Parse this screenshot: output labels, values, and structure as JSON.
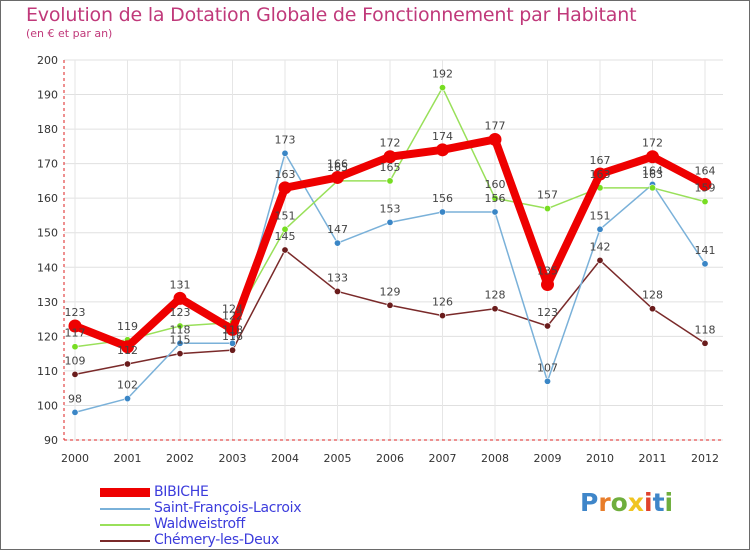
{
  "title": "Evolution de la Dotation Globale de Fonctionnement par Habitant",
  "subtitle": "(en € et par an)",
  "logo": {
    "text": "Proxiti",
    "letters": [
      "P",
      "r",
      "o",
      "x",
      "i",
      "t",
      "i"
    ],
    "colors": [
      "#3f86c9",
      "#e87d2a",
      "#6fae3d",
      "#f0c420",
      "#e0422d",
      "#3f86c9",
      "#6fae3d"
    ]
  },
  "chart_data": {
    "type": "line",
    "title": "Evolution de la Dotation Globale de Fonctionnement par Habitant",
    "subtitle": "(en € et par an)",
    "xlabel": "",
    "ylabel": "",
    "categories": [
      "2000",
      "2001",
      "2002",
      "2003",
      "2004",
      "2005",
      "2006",
      "2007",
      "2008",
      "2009",
      "2010",
      "2011",
      "2012"
    ],
    "ylim": [
      90,
      200
    ],
    "yticks": [
      "90",
      "100",
      "110",
      "120",
      "130",
      "140",
      "150",
      "160",
      "170",
      "180",
      "190",
      "200"
    ],
    "grid": true,
    "legend_position": "bottom-left",
    "series": [
      {
        "name": "BIBICHE",
        "color": "#ee0000",
        "lineColor": "#ee0000",
        "values": [
          123,
          117,
          131,
          122,
          163,
          166,
          172,
          174,
          177,
          135,
          167,
          172,
          164
        ],
        "labels": [
          "123",
          "",
          "131",
          "122",
          "163",
          "166",
          "172",
          "174",
          "177",
          "135",
          "167",
          "172",
          "164"
        ]
      },
      {
        "name": "Saint-François-Lacroix",
        "color": "#3a86c6",
        "lineColor": "#7ab1d9",
        "values": [
          98,
          102,
          118,
          118,
          173,
          147,
          153,
          156,
          156,
          107,
          151,
          164,
          141
        ],
        "labels": [
          "98",
          "102",
          "118",
          "118",
          "173",
          "147",
          "153",
          "156",
          "156",
          "107",
          "151",
          "164",
          "141"
        ]
      },
      {
        "name": "Waldweistroff",
        "color": "#77dd22",
        "lineColor": "#99e05a",
        "values": [
          117,
          119,
          123,
          124,
          151,
          165,
          165,
          192,
          160,
          157,
          163,
          163,
          159
        ],
        "labels": [
          "117",
          "119",
          "123",
          "124",
          "151",
          "165",
          "165",
          "192",
          "160",
          "157",
          "163",
          "163",
          "159"
        ]
      },
      {
        "name": "Chémery-les-Deux",
        "color": "#6a1c1c",
        "lineColor": "#7a2a2a",
        "values": [
          109,
          112,
          115,
          116,
          145,
          133,
          129,
          126,
          128,
          123,
          142,
          128,
          118
        ],
        "labels": [
          "109",
          "112",
          "115",
          "116",
          "145",
          "133",
          "129",
          "126",
          "128",
          "123",
          "142",
          "128",
          "118"
        ]
      }
    ],
    "legend": [
      "BIBICHE",
      "Saint-François-Lacroix",
      "Waldweistroff",
      "Chémery-les-Deux"
    ]
  }
}
